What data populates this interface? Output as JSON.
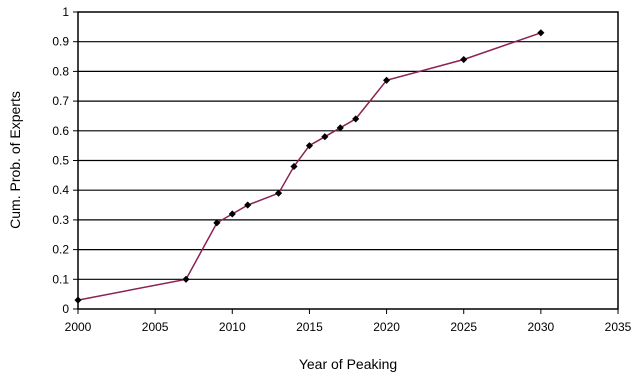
{
  "chart_data": {
    "type": "line",
    "title": "",
    "xlabel": "Year of Peaking",
    "ylabel": "Cum. Prob. of Experts",
    "xlim": [
      2000,
      2035
    ],
    "ylim": [
      0,
      1
    ],
    "x_ticks": [
      2000,
      2005,
      2010,
      2015,
      2020,
      2025,
      2030,
      2035
    ],
    "y_ticks": [
      0,
      0.1,
      0.2,
      0.3,
      0.4,
      0.5,
      0.6,
      0.7,
      0.8,
      0.9,
      1
    ],
    "grid": "horizontal",
    "legend": "none",
    "series": [
      {
        "color": "#8b2252",
        "marker_color": "#000000",
        "x": [
          2000,
          2007,
          2009,
          2010,
          2011,
          2013,
          2014,
          2015,
          2016,
          2017,
          2018,
          2020,
          2025,
          2030
        ],
        "y": [
          0.03,
          0.1,
          0.29,
          0.32,
          0.35,
          0.39,
          0.48,
          0.55,
          0.58,
          0.61,
          0.64,
          0.77,
          0.84,
          0.93
        ]
      }
    ]
  }
}
